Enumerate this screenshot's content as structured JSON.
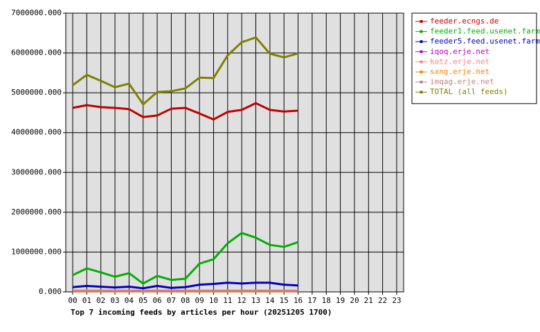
{
  "chart_data": {
    "type": "line",
    "title": "Top 7 incoming feeds by articles per hour (20251205 1700)",
    "categories": [
      "00",
      "01",
      "02",
      "03",
      "04",
      "05",
      "06",
      "07",
      "08",
      "09",
      "10",
      "11",
      "12",
      "13",
      "14",
      "15",
      "16",
      "17",
      "18",
      "19",
      "20",
      "21",
      "22",
      "23"
    ],
    "series": [
      {
        "name": "feeder.ecngs.de",
        "color": "#c00000",
        "values": [
          4620000,
          4690000,
          4640000,
          4620000,
          4590000,
          4390000,
          4430000,
          4600000,
          4620000,
          4480000,
          4330000,
          4520000,
          4570000,
          4740000,
          4570000,
          4530000,
          4550000,
          null,
          null,
          null,
          null,
          null,
          null,
          null
        ]
      },
      {
        "name": "feeder1.feed.usenet.farm",
        "color": "#00b000",
        "values": [
          420000,
          590000,
          490000,
          380000,
          470000,
          210000,
          400000,
          300000,
          330000,
          710000,
          820000,
          1220000,
          1480000,
          1360000,
          1180000,
          1130000,
          1250000,
          null,
          null,
          null,
          null,
          null,
          null,
          null
        ]
      },
      {
        "name": "feeder5.feed.usenet.farm",
        "color": "#0000c0",
        "values": [
          120000,
          150000,
          130000,
          110000,
          130000,
          90000,
          150000,
          100000,
          120000,
          180000,
          200000,
          230000,
          210000,
          230000,
          230000,
          180000,
          160000,
          null,
          null,
          null,
          null,
          null,
          null,
          null
        ]
      },
      {
        "name": "iqoq.erje.net",
        "color": "#c000c0",
        "values": [
          20000,
          20000,
          20000,
          20000,
          20000,
          20000,
          20000,
          20000,
          20000,
          20000,
          20000,
          20000,
          20000,
          20000,
          20000,
          20000,
          20000,
          null,
          null,
          null,
          null,
          null,
          null,
          null
        ]
      },
      {
        "name": "kotz.erje.net",
        "color": "#ff8080",
        "values": [
          30000,
          30000,
          30000,
          30000,
          30000,
          30000,
          30000,
          30000,
          30000,
          30000,
          30000,
          30000,
          30000,
          30000,
          30000,
          30000,
          30000,
          null,
          null,
          null,
          null,
          null,
          null,
          null
        ]
      },
      {
        "name": "sxng.erje.net",
        "color": "#ff8000",
        "values": [
          10000,
          10000,
          10000,
          10000,
          10000,
          10000,
          10000,
          10000,
          10000,
          10000,
          10000,
          10000,
          10000,
          10000,
          10000,
          10000,
          10000,
          null,
          null,
          null,
          null,
          null,
          null,
          null
        ]
      },
      {
        "name": "imqag.erje.net",
        "color": "#c08080",
        "values": [
          20000,
          20000,
          20000,
          20000,
          20000,
          20000,
          20000,
          20000,
          20000,
          20000,
          20000,
          20000,
          20000,
          20000,
          20000,
          20000,
          20000,
          null,
          null,
          null,
          null,
          null,
          null,
          null
        ]
      },
      {
        "name": "TOTAL (all feeds)",
        "color": "#808000",
        "values": [
          5190000,
          5450000,
          5300000,
          5140000,
          5230000,
          4710000,
          5020000,
          5040000,
          5110000,
          5380000,
          5370000,
          5940000,
          6270000,
          6390000,
          5980000,
          5890000,
          5990000,
          null,
          null,
          null,
          null,
          null,
          null,
          null
        ]
      }
    ],
    "ylim": [
      0,
      7000000
    ],
    "yticks": [
      {
        "value": 0,
        "label": "0.000"
      },
      {
        "value": 1000000,
        "label": "1000000.000"
      },
      {
        "value": 2000000,
        "label": "2000000.000"
      },
      {
        "value": 3000000,
        "label": "3000000.000"
      },
      {
        "value": 4000000,
        "label": "4000000.000"
      },
      {
        "value": 5000000,
        "label": "5000000.000"
      },
      {
        "value": 6000000,
        "label": "6000000.000"
      },
      {
        "value": 7000000,
        "label": "7000000.000"
      }
    ],
    "grid": true,
    "legend": "right"
  }
}
